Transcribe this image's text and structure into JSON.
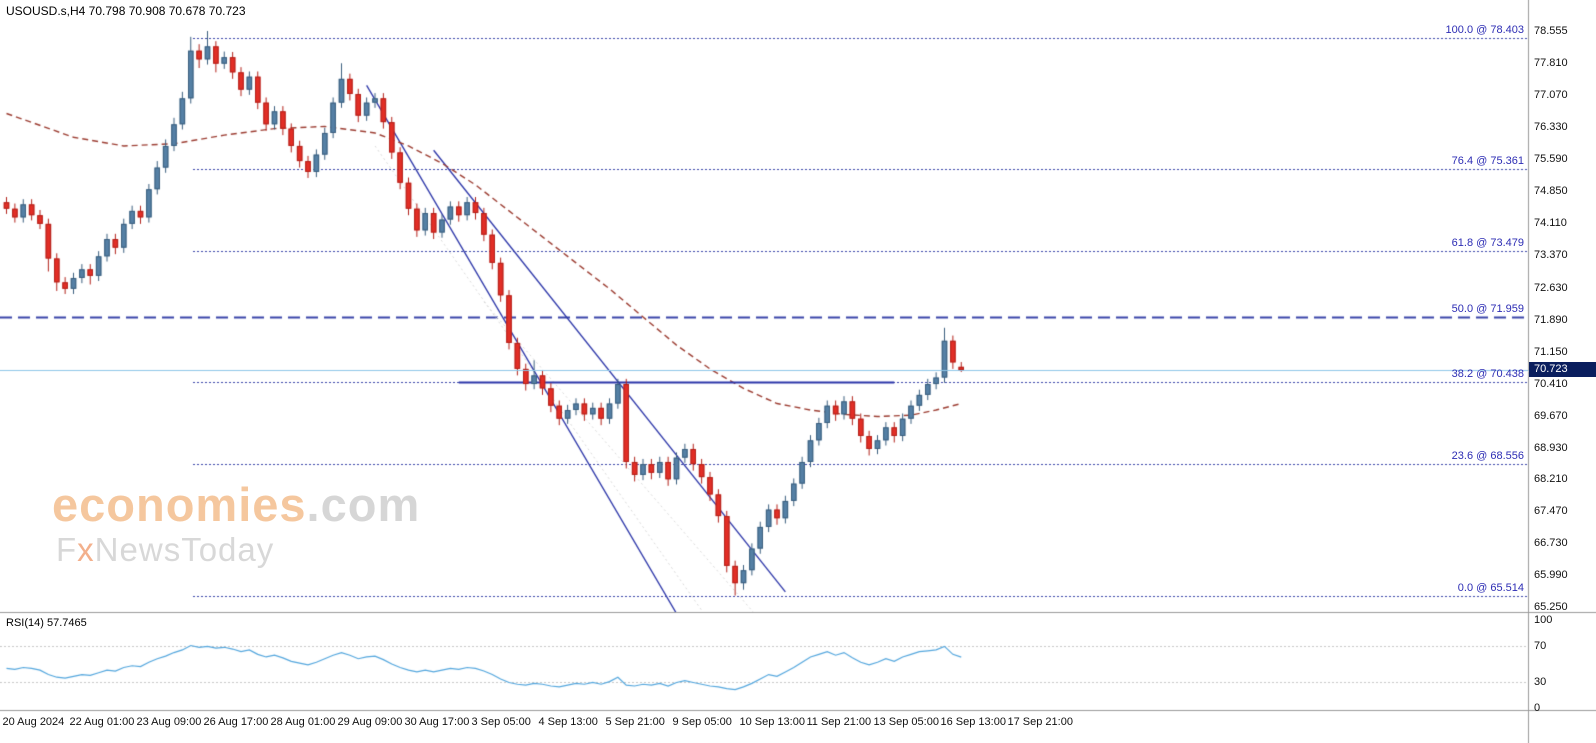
{
  "header": {
    "symbol_title": "USOUSD.s,H4 70.798 70.908 70.678 70.723"
  },
  "watermark": {
    "brand": "economies",
    "suffix": ".com",
    "tagline_f": "F",
    "tagline_x": "x",
    "tagline_rest": "NewsToday"
  },
  "price_axis": {
    "current_price": "70.723"
  },
  "rsi_panel": {
    "label": "RSI(14) 57.7465"
  },
  "colors": {
    "candle_up": "#5580a5",
    "candle_up_border": "#3a5e7e",
    "candle_down": "#e22e26",
    "candle_down_border": "#b2211a",
    "ma": "#9c3d32",
    "trend": "#2b35a8",
    "guide": "#d9d9d9",
    "fib": "#3944a8",
    "fib_label": "#2d2db4",
    "support": "#2b35a8",
    "price_line": "#8fc7e8",
    "badge_bg": "#0a1e5e",
    "badge_text": "#ffffff",
    "rsi_line": "#53a6dd",
    "rsi_level": "#c6c6c6",
    "separator": "#9a9a9a",
    "axis_text": "#111111"
  },
  "chart_data": {
    "type": "candlestick",
    "symbol": "USOUSD.s",
    "timeframe": "H4",
    "title": "USOUSD.s,H4",
    "last_ohlc": {
      "open": 70.798,
      "high": 70.908,
      "low": 70.678,
      "close": 70.723
    },
    "ylim": [
      65.25,
      78.555
    ],
    "price_axis_ticks": [
      "78.555",
      "77.810",
      "77.070",
      "76.330",
      "75.590",
      "74.850",
      "74.110",
      "73.370",
      "72.630",
      "71.890",
      "71.150",
      "70.410",
      "69.670",
      "68.930",
      "68.210",
      "67.470",
      "66.730",
      "65.990",
      "65.250"
    ],
    "time_labels": [
      "20 Aug 2024",
      "22 Aug 01:00",
      "23 Aug 09:00",
      "26 Aug 17:00",
      "28 Aug 01:00",
      "29 Aug 09:00",
      "30 Aug 17:00",
      "3 Sep 05:00",
      "4 Sep 13:00",
      "5 Sep 21:00",
      "9 Sep 05:00",
      "10 Sep 13:00",
      "11 Sep 21:00",
      "13 Sep 05:00",
      "16 Sep 13:00",
      "17 Sep 21:00"
    ],
    "candles_per_time_label": 8,
    "candles": [
      [
        74.6,
        74.72,
        74.33,
        74.45
      ],
      [
        74.45,
        74.57,
        74.13,
        74.25
      ],
      [
        74.25,
        74.67,
        74.13,
        74.55
      ],
      [
        74.55,
        74.67,
        74.18,
        74.3
      ],
      [
        74.3,
        74.42,
        73.98,
        74.1
      ],
      [
        74.1,
        74.22,
        73.0,
        73.3
      ],
      [
        73.3,
        73.42,
        72.55,
        72.75
      ],
      [
        72.75,
        72.87,
        72.48,
        72.6
      ],
      [
        72.6,
        72.97,
        72.48,
        72.85
      ],
      [
        72.85,
        73.17,
        72.73,
        73.05
      ],
      [
        73.05,
        73.17,
        72.7,
        72.9
      ],
      [
        72.9,
        73.47,
        72.78,
        73.35
      ],
      [
        73.35,
        73.87,
        73.23,
        73.75
      ],
      [
        73.75,
        73.87,
        73.4,
        73.55
      ],
      [
        73.55,
        74.22,
        73.43,
        74.1
      ],
      [
        74.1,
        74.52,
        73.98,
        74.4
      ],
      [
        74.4,
        74.52,
        74.1,
        74.25
      ],
      [
        74.25,
        75.02,
        74.13,
        74.9
      ],
      [
        74.9,
        75.55,
        74.78,
        75.4
      ],
      [
        75.4,
        76.05,
        75.28,
        75.9
      ],
      [
        75.9,
        76.55,
        75.78,
        76.4
      ],
      [
        76.4,
        77.15,
        76.28,
        77.0
      ],
      [
        77.0,
        78.42,
        76.88,
        78.1
      ],
      [
        78.1,
        78.25,
        77.7,
        77.9
      ],
      [
        77.9,
        78.555,
        77.78,
        78.2
      ],
      [
        78.2,
        78.32,
        77.6,
        77.8
      ],
      [
        77.8,
        78.08,
        77.68,
        77.95
      ],
      [
        77.95,
        78.07,
        77.45,
        77.6
      ],
      [
        77.6,
        77.72,
        77.05,
        77.2
      ],
      [
        77.2,
        77.62,
        77.08,
        77.5
      ],
      [
        77.5,
        77.62,
        76.75,
        76.9
      ],
      [
        76.9,
        77.02,
        76.25,
        76.4
      ],
      [
        76.4,
        76.82,
        76.28,
        76.7
      ],
      [
        76.7,
        76.82,
        76.15,
        76.3
      ],
      [
        76.3,
        76.42,
        75.75,
        75.9
      ],
      [
        75.9,
        76.02,
        75.4,
        75.55
      ],
      [
        75.55,
        75.67,
        75.16,
        75.3
      ],
      [
        75.3,
        75.82,
        75.18,
        75.7
      ],
      [
        75.7,
        76.32,
        75.58,
        76.2
      ],
      [
        76.2,
        77.02,
        76.08,
        76.9
      ],
      [
        76.9,
        77.81,
        76.78,
        77.45
      ],
      [
        77.45,
        77.57,
        76.95,
        77.1
      ],
      [
        77.1,
        77.22,
        76.45,
        76.6
      ],
      [
        76.6,
        77.02,
        76.48,
        76.9
      ],
      [
        76.9,
        77.12,
        76.78,
        77.0
      ],
      [
        77.0,
        77.12,
        76.3,
        76.45
      ],
      [
        76.45,
        76.57,
        75.6,
        75.75
      ],
      [
        75.75,
        75.87,
        74.9,
        75.05
      ],
      [
        75.05,
        75.17,
        74.3,
        74.45
      ],
      [
        74.45,
        74.57,
        73.8,
        73.95
      ],
      [
        73.95,
        74.47,
        73.83,
        74.35
      ],
      [
        74.35,
        74.47,
        73.75,
        73.9
      ],
      [
        73.9,
        74.32,
        73.78,
        74.2
      ],
      [
        74.2,
        74.62,
        74.08,
        74.5
      ],
      [
        74.5,
        74.62,
        74.15,
        74.3
      ],
      [
        74.3,
        74.72,
        74.18,
        74.6
      ],
      [
        74.6,
        74.72,
        74.2,
        74.35
      ],
      [
        74.35,
        74.47,
        73.7,
        73.85
      ],
      [
        73.85,
        73.97,
        73.05,
        73.2
      ],
      [
        73.2,
        73.32,
        72.3,
        72.45
      ],
      [
        72.45,
        72.57,
        71.2,
        71.35
      ],
      [
        71.35,
        71.47,
        70.6,
        70.75
      ],
      [
        70.75,
        70.87,
        70.25,
        70.4
      ],
      [
        70.4,
        70.95,
        70.28,
        70.6
      ],
      [
        70.6,
        70.72,
        70.15,
        70.3
      ],
      [
        70.3,
        70.42,
        69.75,
        69.9
      ],
      [
        69.9,
        70.02,
        69.45,
        69.6
      ],
      [
        69.6,
        69.92,
        69.48,
        69.8
      ],
      [
        69.8,
        70.07,
        69.68,
        69.95
      ],
      [
        69.95,
        70.07,
        69.55,
        69.7
      ],
      [
        69.7,
        69.97,
        69.58,
        69.85
      ],
      [
        69.85,
        69.97,
        69.45,
        69.6
      ],
      [
        69.6,
        70.07,
        69.48,
        69.95
      ],
      [
        69.95,
        70.52,
        69.83,
        70.4
      ],
      [
        70.4,
        70.52,
        68.45,
        68.6
      ],
      [
        68.6,
        68.72,
        68.15,
        68.3
      ],
      [
        68.3,
        68.67,
        68.18,
        68.55
      ],
      [
        68.55,
        68.67,
        68.2,
        68.35
      ],
      [
        68.35,
        68.72,
        68.23,
        68.6
      ],
      [
        68.6,
        68.72,
        68.05,
        68.2
      ],
      [
        68.2,
        68.82,
        68.08,
        68.7
      ],
      [
        68.7,
        69.02,
        68.58,
        68.9
      ],
      [
        68.9,
        69.02,
        68.4,
        68.55
      ],
      [
        68.55,
        68.67,
        68.1,
        68.25
      ],
      [
        68.25,
        68.37,
        67.7,
        67.85
      ],
      [
        67.85,
        67.97,
        67.2,
        67.35
      ],
      [
        67.35,
        67.47,
        66.05,
        66.2
      ],
      [
        66.2,
        66.32,
        65.514,
        65.8
      ],
      [
        65.8,
        66.22,
        65.65,
        66.1
      ],
      [
        66.1,
        66.72,
        65.98,
        66.6
      ],
      [
        66.6,
        67.22,
        66.48,
        67.1
      ],
      [
        67.1,
        67.62,
        66.98,
        67.5
      ],
      [
        67.5,
        67.62,
        67.15,
        67.3
      ],
      [
        67.3,
        67.82,
        67.18,
        67.7
      ],
      [
        67.7,
        68.22,
        67.58,
        68.1
      ],
      [
        68.1,
        68.72,
        67.98,
        68.6
      ],
      [
        68.6,
        69.22,
        68.48,
        69.1
      ],
      [
        69.1,
        69.62,
        68.98,
        69.5
      ],
      [
        69.5,
        70.02,
        69.38,
        69.9
      ],
      [
        69.9,
        70.02,
        69.55,
        69.7
      ],
      [
        69.7,
        70.12,
        69.58,
        70.0
      ],
      [
        70.0,
        70.12,
        69.45,
        69.6
      ],
      [
        69.6,
        69.72,
        69.05,
        69.2
      ],
      [
        69.2,
        69.32,
        68.75,
        68.9
      ],
      [
        68.9,
        69.22,
        68.78,
        69.1
      ],
      [
        69.1,
        69.52,
        68.98,
        69.4
      ],
      [
        69.4,
        69.52,
        69.05,
        69.2
      ],
      [
        69.2,
        69.72,
        69.08,
        69.6
      ],
      [
        69.6,
        70.02,
        69.48,
        69.9
      ],
      [
        69.9,
        70.27,
        69.78,
        70.15
      ],
      [
        70.15,
        70.52,
        70.03,
        70.4
      ],
      [
        70.4,
        70.67,
        70.28,
        70.55
      ],
      [
        70.55,
        71.7,
        70.43,
        71.4
      ],
      [
        71.4,
        71.52,
        70.75,
        70.9
      ],
      [
        70.798,
        70.908,
        70.678,
        70.723
      ]
    ],
    "ma_dashed_points": [
      [
        0,
        76.65
      ],
      [
        8,
        76.1
      ],
      [
        14,
        75.9
      ],
      [
        20,
        75.95
      ],
      [
        26,
        76.15
      ],
      [
        32,
        76.3
      ],
      [
        38,
        76.35
      ],
      [
        44,
        76.2
      ],
      [
        48,
        75.9
      ],
      [
        52,
        75.5
      ],
      [
        56,
        75.0
      ],
      [
        60,
        74.4
      ],
      [
        64,
        73.8
      ],
      [
        68,
        73.2
      ],
      [
        72,
        72.6
      ],
      [
        76,
        71.95
      ],
      [
        80,
        71.3
      ],
      [
        84,
        70.75
      ],
      [
        88,
        70.3
      ],
      [
        92,
        69.95
      ],
      [
        96,
        69.8
      ],
      [
        100,
        69.7
      ],
      [
        104,
        69.65
      ],
      [
        108,
        69.68
      ],
      [
        111,
        69.8
      ],
      [
        114,
        69.95
      ]
    ],
    "trendlines": [
      {
        "from": [
          43,
          77.3
        ],
        "to": [
          80,
          65.1
        ]
      },
      {
        "from": [
          51,
          75.8
        ],
        "to": [
          93,
          65.6
        ]
      }
    ],
    "guide_dotted_lines": [
      {
        "from": [
          44,
          75.9
        ],
        "to": [
          84,
          64.9
        ]
      },
      {
        "from": [
          57,
          72.3
        ],
        "to": [
          92,
          64.5
        ]
      }
    ],
    "fibonacci": [
      {
        "label": "100.0 @ 78.403",
        "price": 78.403
      },
      {
        "label": "76.4 @ 75.361",
        "price": 75.361
      },
      {
        "label": "61.8 @ 73.479",
        "price": 73.479
      },
      {
        "label": "50.0 @ 71.959",
        "price": 71.959,
        "full_width": true
      },
      {
        "label": "38.2 @ 70.438",
        "price": 70.438
      },
      {
        "label": "23.6 @ 68.556",
        "price": 68.556
      },
      {
        "label": "0.0 @ 65.514",
        "price": 65.514
      }
    ],
    "horizontal_support": {
      "price": 70.438,
      "from_index": 54,
      "to_index": 106
    },
    "current_price_line": 70.723,
    "rsi": {
      "name": "RSI",
      "period": 14,
      "current": 57.7465,
      "range": [
        0,
        100
      ],
      "levels": [
        70,
        30
      ],
      "axis_ticks": [
        "100",
        "70",
        "30",
        "0"
      ],
      "values": [
        45,
        44,
        46,
        45,
        43,
        38,
        35,
        34,
        36,
        38,
        37,
        40,
        43,
        42,
        46,
        48,
        47,
        52,
        56,
        59,
        63,
        66,
        71,
        69,
        70,
        68,
        69,
        67,
        64,
        66,
        61,
        58,
        60,
        57,
        53,
        51,
        49,
        52,
        56,
        60,
        63,
        60,
        56,
        58,
        59,
        55,
        50,
        46,
        43,
        41,
        43,
        41,
        43,
        45,
        44,
        46,
        45,
        42,
        38,
        33,
        29,
        27,
        26,
        28,
        27,
        25,
        24,
        26,
        28,
        27,
        29,
        27,
        30,
        35,
        26,
        25,
        27,
        26,
        28,
        25,
        29,
        31,
        29,
        27,
        25,
        24,
        22,
        21,
        24,
        28,
        33,
        38,
        36,
        41,
        46,
        52,
        58,
        61,
        64,
        60,
        63,
        57,
        52,
        49,
        52,
        56,
        53,
        58,
        61,
        64,
        65,
        66,
        70,
        61,
        57.7465
      ]
    }
  }
}
